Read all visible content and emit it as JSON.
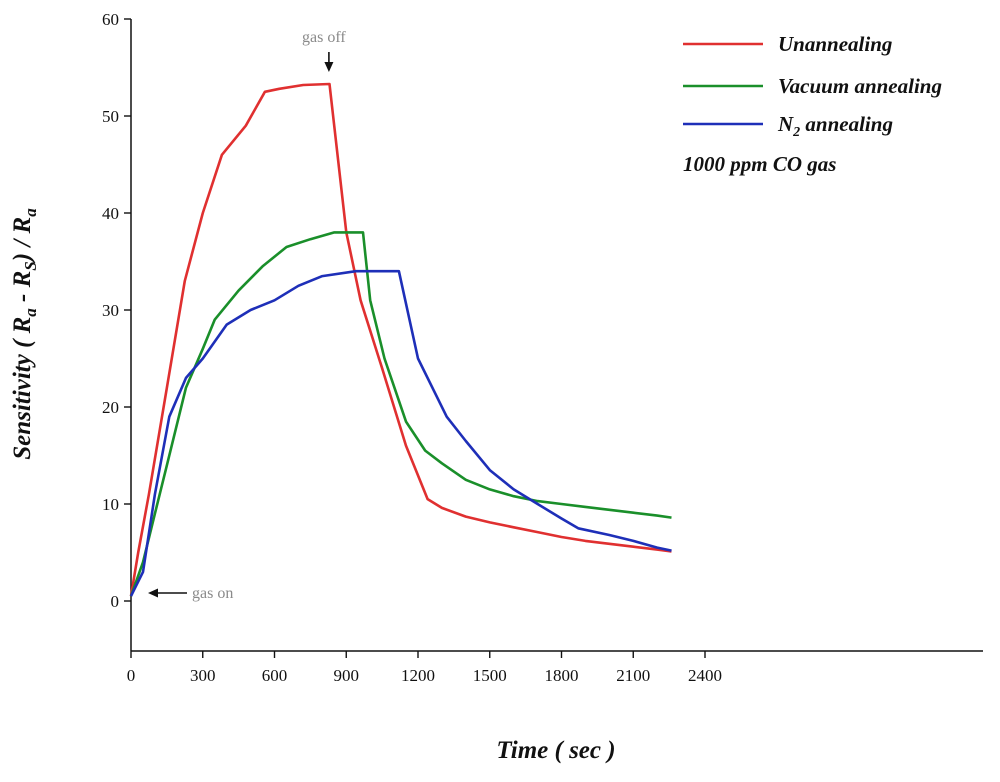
{
  "chart_data": {
    "type": "line",
    "xlabel": "Time ( sec )",
    "ylabel": {
      "prefix": "Sensitivity ( R",
      "sub_a": "a",
      "mid": " - R",
      "sub_s": "S",
      "close": ") / R",
      "sub_a2": "a"
    },
    "xlim": [
      0,
      2400
    ],
    "ylim": [
      0,
      60
    ],
    "x_ticks": [
      0,
      300,
      600,
      900,
      1200,
      1500,
      1800,
      2100,
      2400
    ],
    "y_ticks": [
      0,
      10,
      20,
      30,
      40,
      50,
      60
    ],
    "grid": false,
    "legend_position": "top-right",
    "series": [
      {
        "name": "Unannealing",
        "color": "#e03030",
        "x": [
          0,
          30,
          75,
          150,
          225,
          300,
          380,
          480,
          560,
          620,
          720,
          830,
          900,
          960,
          1050,
          1150,
          1240,
          1300,
          1400,
          1500,
          1600,
          1700,
          1800,
          1900,
          2000,
          2100,
          2200,
          2260
        ],
        "y": [
          0.5,
          5,
          11,
          22,
          33,
          40,
          46,
          49,
          52.5,
          52.8,
          53.2,
          53.3,
          38,
          31,
          24,
          16,
          10.5,
          9.6,
          8.7,
          8.1,
          7.6,
          7.1,
          6.6,
          6.2,
          5.9,
          5.6,
          5.3,
          5.1
        ]
      },
      {
        "name": "Vacuum annealing",
        "color": "#1a8f2a",
        "x": [
          0,
          50,
          100,
          150,
          230,
          300,
          350,
          450,
          550,
          650,
          750,
          850,
          970,
          1000,
          1060,
          1150,
          1230,
          1300,
          1400,
          1500,
          1600,
          1700,
          1800,
          1900,
          2000,
          2100,
          2200,
          2260
        ],
        "y": [
          0.5,
          4,
          9,
          14,
          22,
          26,
          29,
          32,
          34.5,
          36.5,
          37.3,
          38,
          38,
          31,
          25,
          18.5,
          15.5,
          14.2,
          12.5,
          11.5,
          10.8,
          10.3,
          10,
          9.7,
          9.4,
          9.1,
          8.8,
          8.6
        ]
      },
      {
        "name": "N₂ annealing",
        "color": "#1e2fb8",
        "x": [
          0,
          50,
          100,
          160,
          230,
          300,
          400,
          500,
          600,
          700,
          800,
          940,
          1120,
          1200,
          1320,
          1400,
          1500,
          1600,
          1700,
          1800,
          1870,
          2000,
          2100,
          2200,
          2260
        ],
        "y": [
          0.5,
          3,
          11,
          19,
          23,
          25,
          28.5,
          30,
          31,
          32.5,
          33.5,
          34,
          34,
          25,
          19,
          16.5,
          13.5,
          11.5,
          10,
          8.5,
          7.5,
          6.8,
          6.2,
          5.5,
          5.2
        ]
      }
    ],
    "legend": [
      {
        "text": "Unannealing"
      },
      {
        "text": "Vacuum annealing"
      },
      {
        "prefix": "N",
        "sub": "2",
        "rest": " annealing"
      }
    ],
    "annotations": {
      "condition": "1000 ppm CO gas",
      "gas_on": "gas on",
      "gas_on_x": 0,
      "gas_off": "gas off",
      "gas_off_x": 840
    }
  }
}
